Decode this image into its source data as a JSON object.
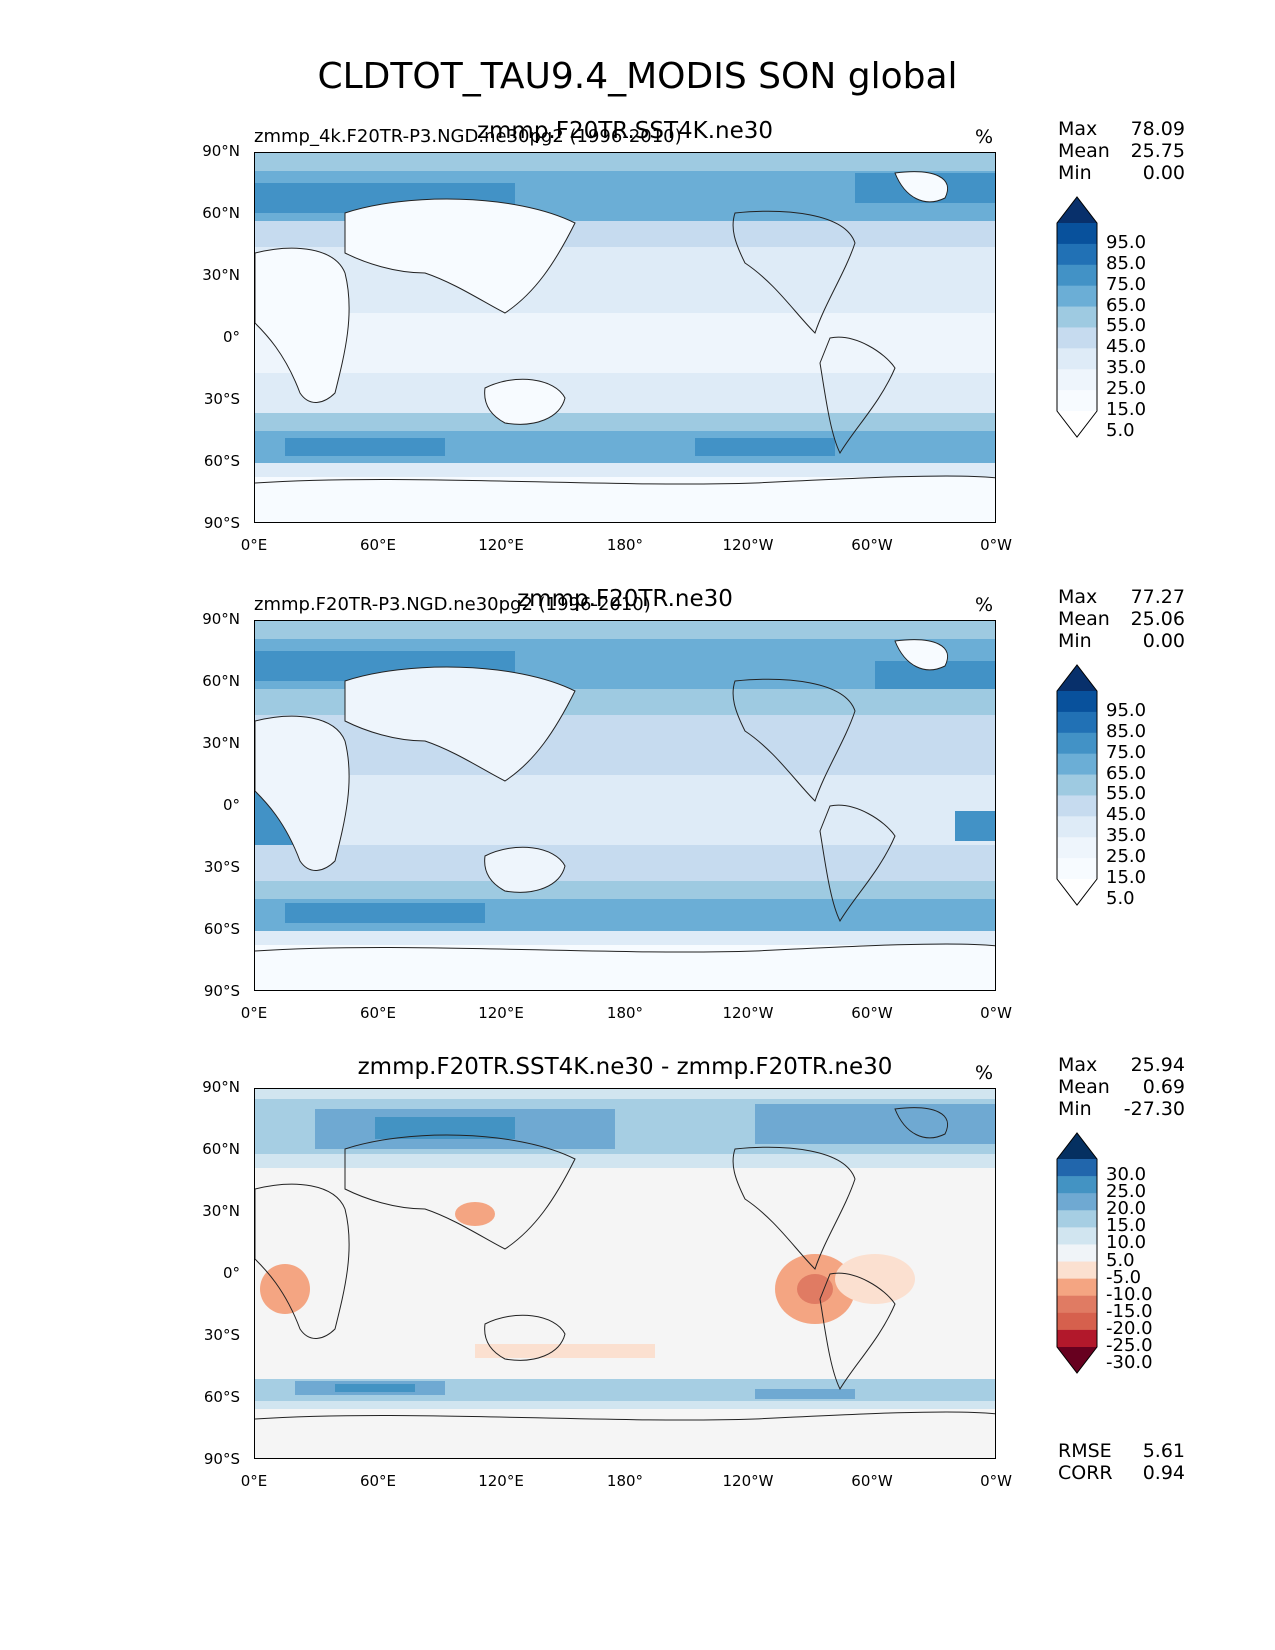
{
  "title": "CLDTOT_TAU9.4_MODIS SON global",
  "units": "%",
  "axes": {
    "yticks": [
      "90°N",
      "60°N",
      "30°N",
      "0°",
      "30°S",
      "60°S",
      "90°S"
    ],
    "xticks": [
      "0°E",
      "60°E",
      "120°E",
      "180°",
      "120°W",
      "60°W",
      "0°W"
    ]
  },
  "panels": [
    {
      "title_left": "zmmp_4k.F20TR-P3.NGD.ne30pg2 (1996-2010)",
      "title_center": "zmmp.F20TR.SST4K.ne30",
      "stats": {
        "max_label": "Max",
        "max": "78.09",
        "mean_label": "Mean",
        "mean": "25.75",
        "min_label": "Min",
        "min": "0.00"
      },
      "colorbar": {
        "labels": [
          "95.0",
          "85.0",
          "75.0",
          "65.0",
          "55.0",
          "45.0",
          "35.0",
          "25.0",
          "15.0",
          "5.0"
        ],
        "colors": [
          "#08306b",
          "#08519c",
          "#2171b5",
          "#4292c6",
          "#6baed6",
          "#9ecae1",
          "#c6dbef",
          "#deebf7",
          "#eef5fc",
          "#f7fbff",
          "#ffffff"
        ]
      }
    },
    {
      "title_left": "zmmp.F20TR-P3.NGD.ne30pg2 (1996-2010)",
      "title_center": "zmmp.F20TR.ne30",
      "stats": {
        "max_label": "Max",
        "max": "77.27",
        "mean_label": "Mean",
        "mean": "25.06",
        "min_label": "Min",
        "min": "0.00"
      },
      "colorbar": {
        "labels": [
          "95.0",
          "85.0",
          "75.0",
          "65.0",
          "55.0",
          "45.0",
          "35.0",
          "25.0",
          "15.0",
          "5.0"
        ],
        "colors": [
          "#08306b",
          "#08519c",
          "#2171b5",
          "#4292c6",
          "#6baed6",
          "#9ecae1",
          "#c6dbef",
          "#deebf7",
          "#eef5fc",
          "#f7fbff",
          "#ffffff"
        ]
      }
    },
    {
      "title_left": "",
      "title_center": "zmmp.F20TR.SST4K.ne30 - zmmp.F20TR.ne30",
      "stats": {
        "max_label": "Max",
        "max": "25.94",
        "mean_label": "Mean",
        "mean": "0.69",
        "min_label": "Min",
        "min": "-27.30"
      },
      "colorbar": {
        "labels": [
          "30.0",
          "25.0",
          "20.0",
          "15.0",
          "10.0",
          "5.0",
          "-5.0",
          "-10.0",
          "-15.0",
          "-20.0",
          "-25.0",
          "-30.0"
        ],
        "colors": [
          "#053061",
          "#2166ac",
          "#4393c3",
          "#6fa9d2",
          "#a6cee3",
          "#d1e5f0",
          "#f0f4f8",
          "#fbe0d0",
          "#f4a582",
          "#e07b63",
          "#d6604d",
          "#b2182b",
          "#67001f"
        ]
      },
      "metrics": {
        "rmse_label": "RMSE",
        "rmse": "5.61",
        "corr_label": "CORR",
        "corr": "0.94"
      }
    }
  ]
}
